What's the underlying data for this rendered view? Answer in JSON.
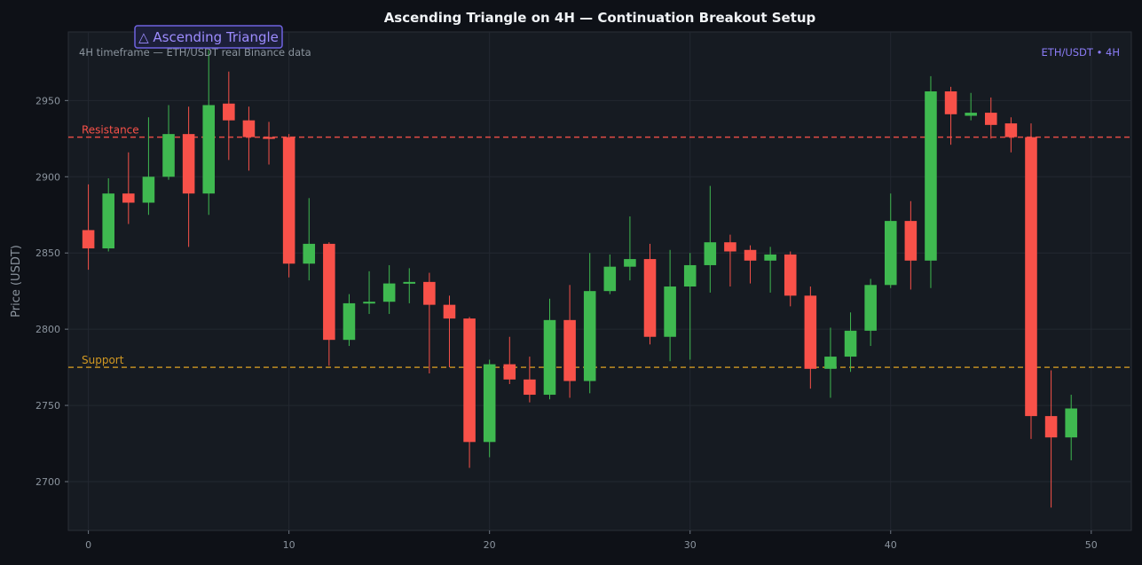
{
  "chart_data": {
    "type": "candlestick",
    "title": "Ascending Triangle on 4H — Continuation Breakout Setup",
    "subtitle": "4H timeframe — ETH/USDT real Binance data",
    "pair_label": "ETH/USDT • 4H",
    "pattern_badge": "△ Ascending Triangle",
    "ylabel": "Price (USDT)",
    "xlabel": "",
    "xlim": [
      -1,
      52
    ],
    "ylim": [
      2668,
      2995
    ],
    "x_ticks": [
      0,
      10,
      20,
      30,
      40,
      50
    ],
    "y_ticks": [
      2700,
      2750,
      2800,
      2850,
      2900,
      2950
    ],
    "grid": true,
    "colors": {
      "background": "#0e1117",
      "plot_background": "#161b22",
      "up": "#3fb950",
      "down": "#f85149",
      "resistance": "#f85149",
      "support": "#d29922",
      "accent": "#8b7cf6"
    },
    "levels": [
      {
        "label": "Resistance",
        "value": 2926,
        "color": "#f85149"
      },
      {
        "label": "Support",
        "value": 2775,
        "color": "#d29922"
      }
    ],
    "candles": [
      {
        "x": 0,
        "open": 2865,
        "high": 2895,
        "low": 2839,
        "close": 2853
      },
      {
        "x": 1,
        "open": 2853,
        "high": 2899,
        "low": 2851,
        "close": 2889
      },
      {
        "x": 2,
        "open": 2889,
        "high": 2916,
        "low": 2869,
        "close": 2883
      },
      {
        "x": 3,
        "open": 2883,
        "high": 2939,
        "low": 2875,
        "close": 2900
      },
      {
        "x": 4,
        "open": 2900,
        "high": 2947,
        "low": 2898,
        "close": 2928
      },
      {
        "x": 5,
        "open": 2928,
        "high": 2946,
        "low": 2854,
        "close": 2889
      },
      {
        "x": 6,
        "open": 2889,
        "high": 2983,
        "low": 2875,
        "close": 2947
      },
      {
        "x": 7,
        "open": 2948,
        "high": 2969,
        "low": 2911,
        "close": 2937
      },
      {
        "x": 8,
        "open": 2937,
        "high": 2946,
        "low": 2904,
        "close": 2926
      },
      {
        "x": 9,
        "open": 2926,
        "high": 2936,
        "low": 2908,
        "close": 2925
      },
      {
        "x": 10,
        "open": 2926,
        "high": 2928,
        "low": 2834,
        "close": 2843
      },
      {
        "x": 11,
        "open": 2843,
        "high": 2886,
        "low": 2832,
        "close": 2856
      },
      {
        "x": 12,
        "open": 2856,
        "high": 2857,
        "low": 2776,
        "close": 2793
      },
      {
        "x": 13,
        "open": 2793,
        "high": 2823,
        "low": 2789,
        "close": 2817
      },
      {
        "x": 14,
        "open": 2817,
        "high": 2838,
        "low": 2810,
        "close": 2818
      },
      {
        "x": 15,
        "open": 2818,
        "high": 2842,
        "low": 2810,
        "close": 2830
      },
      {
        "x": 16,
        "open": 2830,
        "high": 2840,
        "low": 2817,
        "close": 2831
      },
      {
        "x": 17,
        "open": 2831,
        "high": 2837,
        "low": 2771,
        "close": 2816
      },
      {
        "x": 18,
        "open": 2816,
        "high": 2822,
        "low": 2775,
        "close": 2807
      },
      {
        "x": 19,
        "open": 2807,
        "high": 2808,
        "low": 2709,
        "close": 2726
      },
      {
        "x": 20,
        "open": 2726,
        "high": 2780,
        "low": 2716,
        "close": 2777
      },
      {
        "x": 21,
        "open": 2777,
        "high": 2795,
        "low": 2764,
        "close": 2767
      },
      {
        "x": 22,
        "open": 2767,
        "high": 2782,
        "low": 2752,
        "close": 2757
      },
      {
        "x": 23,
        "open": 2757,
        "high": 2820,
        "low": 2754,
        "close": 2806
      },
      {
        "x": 24,
        "open": 2806,
        "high": 2829,
        "low": 2755,
        "close": 2766
      },
      {
        "x": 25,
        "open": 2766,
        "high": 2850,
        "low": 2758,
        "close": 2825
      },
      {
        "x": 26,
        "open": 2825,
        "high": 2849,
        "low": 2823,
        "close": 2841
      },
      {
        "x": 27,
        "open": 2841,
        "high": 2874,
        "low": 2832,
        "close": 2846
      },
      {
        "x": 28,
        "open": 2846,
        "high": 2856,
        "low": 2790,
        "close": 2795
      },
      {
        "x": 29,
        "open": 2795,
        "high": 2852,
        "low": 2779,
        "close": 2828
      },
      {
        "x": 30,
        "open": 2828,
        "high": 2850,
        "low": 2780,
        "close": 2842
      },
      {
        "x": 31,
        "open": 2842,
        "high": 2894,
        "low": 2824,
        "close": 2857
      },
      {
        "x": 32,
        "open": 2857,
        "high": 2862,
        "low": 2828,
        "close": 2851
      },
      {
        "x": 33,
        "open": 2852,
        "high": 2855,
        "low": 2830,
        "close": 2845
      },
      {
        "x": 34,
        "open": 2845,
        "high": 2854,
        "low": 2824,
        "close": 2849
      },
      {
        "x": 35,
        "open": 2849,
        "high": 2851,
        "low": 2815,
        "close": 2822
      },
      {
        "x": 36,
        "open": 2822,
        "high": 2828,
        "low": 2761,
        "close": 2774
      },
      {
        "x": 37,
        "open": 2774,
        "high": 2801,
        "low": 2755,
        "close": 2782
      },
      {
        "x": 38,
        "open": 2782,
        "high": 2811,
        "low": 2772,
        "close": 2799
      },
      {
        "x": 39,
        "open": 2799,
        "high": 2833,
        "low": 2789,
        "close": 2829
      },
      {
        "x": 40,
        "open": 2829,
        "high": 2889,
        "low": 2827,
        "close": 2871
      },
      {
        "x": 41,
        "open": 2871,
        "high": 2884,
        "low": 2826,
        "close": 2845
      },
      {
        "x": 42,
        "open": 2845,
        "high": 2966,
        "low": 2827,
        "close": 2956
      },
      {
        "x": 43,
        "open": 2956,
        "high": 2959,
        "low": 2921,
        "close": 2941
      },
      {
        "x": 44,
        "open": 2940,
        "high": 2955,
        "low": 2937,
        "close": 2942
      },
      {
        "x": 45,
        "open": 2942,
        "high": 2952,
        "low": 2925,
        "close": 2934
      },
      {
        "x": 46,
        "open": 2935,
        "high": 2939,
        "low": 2916,
        "close": 2926
      },
      {
        "x": 47,
        "open": 2926,
        "high": 2935,
        "low": 2728,
        "close": 2743
      },
      {
        "x": 48,
        "open": 2743,
        "high": 2773,
        "low": 2683,
        "close": 2729
      },
      {
        "x": 49,
        "open": 2729,
        "high": 2757,
        "low": 2714,
        "close": 2748
      }
    ]
  }
}
